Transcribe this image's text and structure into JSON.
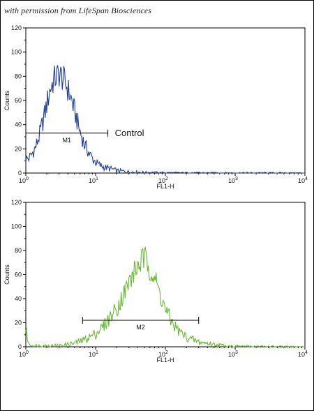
{
  "watermark": "with permission from LifeSpan Biosciences",
  "chart_data": [
    {
      "type": "line",
      "name": "top-histogram",
      "xlabel": "FL1-H",
      "ylabel": "Counts",
      "xscale": "log",
      "xlim": [
        1,
        10000
      ],
      "ylim": [
        0,
        120
      ],
      "x_ticks": [
        {
          "base": "10",
          "exp": "0"
        },
        {
          "base": "10",
          "exp": "1"
        },
        {
          "base": "10",
          "exp": "2"
        },
        {
          "base": "10",
          "exp": "3"
        },
        {
          "base": "10",
          "exp": "4"
        }
      ],
      "y_ticks": [
        "0",
        "20",
        "40",
        "60",
        "80",
        "100",
        "120"
      ],
      "color": "#1f3f99",
      "series": [
        {
          "x": [
            1.0,
            1.1,
            1.2,
            1.4,
            1.6,
            1.8,
            2.0,
            2.2,
            2.5,
            2.8,
            3.0,
            3.2,
            3.5,
            3.8,
            4.0,
            4.5,
            5.0,
            5.5,
            6.0,
            7.0,
            8.0,
            9.0,
            10.0,
            11.0,
            12.0,
            13.0,
            15.0,
            18.0,
            20.0,
            25.0,
            30.0,
            40.0,
            50.0,
            100.0,
            200.0,
            1000.0,
            10000.0
          ],
          "y": [
            12,
            12,
            15,
            22,
            33,
            45,
            57,
            68,
            77,
            80,
            82,
            80,
            77,
            73,
            69,
            61,
            51,
            42,
            34,
            23,
            17,
            12,
            9,
            7,
            6,
            5,
            4,
            3,
            2,
            1.5,
            1,
            0.8,
            0.5,
            0.3,
            0.2,
            0.1,
            0
          ]
        }
      ],
      "marker": {
        "label": "M1",
        "x_start": 1,
        "x_end": 15,
        "y": 33
      },
      "annotation": "Control"
    },
    {
      "type": "line",
      "name": "bottom-histogram",
      "xlabel": "FL1-H",
      "ylabel": "Counts",
      "xscale": "log",
      "xlim": [
        1,
        10000
      ],
      "ylim": [
        0,
        120
      ],
      "x_ticks": [
        {
          "base": "10",
          "exp": "0"
        },
        {
          "base": "10",
          "exp": "1"
        },
        {
          "base": "10",
          "exp": "2"
        },
        {
          "base": "10",
          "exp": "3"
        },
        {
          "base": "10",
          "exp": "4"
        }
      ],
      "y_ticks": [
        "0",
        "20",
        "40",
        "60",
        "80",
        "100",
        "120"
      ],
      "color": "#66bb33",
      "series": [
        {
          "x": [
            1.0,
            1.05,
            1.1,
            1.3,
            2.0,
            3.0,
            4.0,
            5.0,
            7.0,
            10.0,
            13.0,
            15.0,
            20.0,
            25.0,
            30.0,
            35.0,
            40.0,
            45.0,
            50.0,
            55.0,
            60.0,
            70.0,
            80.0,
            100.0,
            120.0,
            150.0,
            200.0,
            300.0,
            500.0,
            700.0,
            1000.0,
            10000.0
          ],
          "y": [
            15,
            8,
            2,
            1,
            1,
            1,
            2,
            3,
            6,
            11,
            17,
            22,
            32,
            43,
            53,
            61,
            67,
            71,
            73,
            70,
            66,
            57,
            47,
            31,
            22,
            14,
            8,
            4,
            2,
            1,
            0.5,
            0
          ]
        }
      ],
      "marker": {
        "label": "M2",
        "x_start": 6.5,
        "x_end": 300,
        "y": 22
      }
    }
  ]
}
